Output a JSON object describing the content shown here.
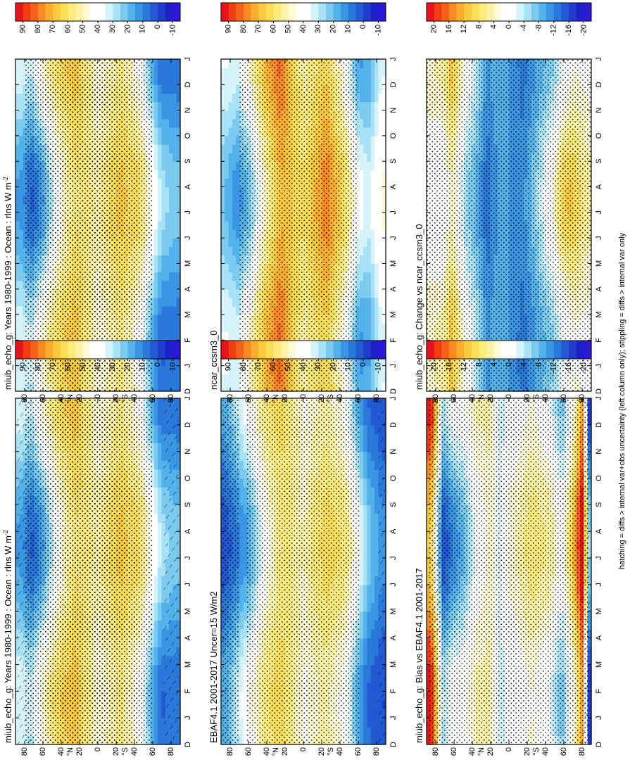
{
  "figure": {
    "footnote": "hatching = diffs > internal var+obs uncertainty (left column only); stippling = diffs > internal var only",
    "orientation": "rotated 90 degrees clockwise (page viewed in landscape)"
  },
  "scales": {
    "absolute": {
      "labels": [
        "90",
        "80",
        "70",
        "60",
        "50",
        "40",
        "30",
        "20",
        "10",
        "0",
        "-10"
      ],
      "colors": [
        "#e8141c",
        "#f23c14",
        "#f7621a",
        "#fb8a22",
        "#fdae2e",
        "#fec93e",
        "#fedd57",
        "#ffeb7c",
        "#fff3a8",
        "#fffbd6",
        "#ffffff",
        "#ffffff",
        "#d6f3fb",
        "#a8e2f7",
        "#7ccaf0",
        "#54b2ea",
        "#3a96e2",
        "#2a78da",
        "#2359d2",
        "#1f3ccc",
        "#1d22c6",
        "#2b18d6"
      ]
    },
    "difference": {
      "labels": [
        "20",
        "16",
        "12",
        "8",
        "4",
        "0",
        "-4",
        "-8",
        "-12",
        "-16",
        "-20"
      ],
      "colors": [
        "#e8141c",
        "#f23c14",
        "#f7621a",
        "#fb8a22",
        "#fdae2e",
        "#fec93e",
        "#fedd57",
        "#ffeb7c",
        "#fff3a8",
        "#fffbd6",
        "#ffffff",
        "#ffffff",
        "#d6f3fb",
        "#a8e2f7",
        "#7ccaf0",
        "#54b2ea",
        "#3a96e2",
        "#2a78da",
        "#2359d2",
        "#1f3ccc",
        "#1d22c6",
        "#2b18d6"
      ]
    }
  },
  "axes": {
    "months": [
      "J",
      "F",
      "M",
      "A",
      "M",
      "J",
      "J",
      "A",
      "S",
      "O",
      "N",
      "D",
      "J"
    ],
    "month_start_label": "D",
    "lat_labels": [
      "80",
      "60",
      "40",
      "20",
      "0",
      "20",
      "40",
      "60",
      "80"
    ],
    "lat_values": [
      80,
      60,
      40,
      20,
      0,
      -20,
      -40,
      -60,
      -80
    ],
    "lat_unit_north": "°N",
    "lat_unit_south": "°S"
  },
  "chart_data": [
    {
      "type": "heatmap",
      "id": "p1",
      "title": "miub_echo_g: Years 1980-1999 : Ocean : rlns W m",
      "title_sup": "-2",
      "scale": "absolute",
      "xlabel": "month",
      "ylabel": "latitude",
      "x": [
        "D",
        "J",
        "F",
        "M",
        "A",
        "M",
        "J",
        "J",
        "A",
        "S",
        "O",
        "N",
        "D",
        "J"
      ],
      "ylim": [
        -90,
        90
      ],
      "lat_profile": [
        [
          -85,
          14
        ],
        [
          -70,
          16
        ],
        [
          -58,
          32
        ],
        [
          -45,
          52
        ],
        [
          -25,
          62
        ],
        [
          -10,
          54
        ],
        [
          0,
          48
        ],
        [
          12,
          58
        ],
        [
          25,
          64
        ],
        [
          42,
          54
        ],
        [
          58,
          34
        ],
        [
          72,
          18
        ],
        [
          85,
          24
        ]
      ],
      "seasonal": [
        [
          -85,
          8
        ],
        [
          -60,
          14
        ],
        [
          -30,
          6
        ],
        [
          0,
          4
        ],
        [
          30,
          -6
        ],
        [
          60,
          -18
        ],
        [
          85,
          -10
        ]
      ],
      "stipple": [
        [
          -60,
          65
        ],
        [
          -45,
          40
        ],
        [
          -20,
          10
        ],
        [
          12,
          58
        ],
        [
          65,
          80
        ]
      ],
      "hatch": [
        [
          -88,
          -72
        ],
        [
          72,
          88
        ]
      ]
    },
    {
      "type": "heatmap",
      "id": "p2",
      "title": "EBAF4.1 2001-2017 Uncer=15 W/m2",
      "title_sup": "",
      "scale": "absolute",
      "xlabel": "month",
      "ylabel": "latitude",
      "x": [
        "D",
        "J",
        "F",
        "M",
        "A",
        "M",
        "J",
        "J",
        "A",
        "S",
        "O",
        "N",
        "D",
        "J"
      ],
      "ylim": [
        -90,
        90
      ],
      "lat_profile": [
        [
          -85,
          6
        ],
        [
          -70,
          14
        ],
        [
          -58,
          30
        ],
        [
          -45,
          50
        ],
        [
          -25,
          58
        ],
        [
          -10,
          52
        ],
        [
          0,
          46
        ],
        [
          12,
          56
        ],
        [
          25,
          60
        ],
        [
          42,
          50
        ],
        [
          58,
          30
        ],
        [
          72,
          20
        ],
        [
          85,
          10
        ]
      ],
      "seasonal": [
        [
          -85,
          6
        ],
        [
          -60,
          12
        ],
        [
          -30,
          6
        ],
        [
          0,
          3
        ],
        [
          30,
          -5
        ],
        [
          60,
          -14
        ],
        [
          85,
          -8
        ]
      ],
      "stipple": [
        [
          -62,
          62
        ],
        [
          70,
          88
        ]
      ],
      "hatch": [
        [
          -90,
          -82
        ],
        [
          80,
          90
        ]
      ]
    },
    {
      "type": "heatmap",
      "id": "p3",
      "title": "miub_echo_g: Bias vs EBAF4.1 2001-2017",
      "title_sup": "",
      "scale": "difference",
      "xlabel": "month",
      "ylabel": "latitude",
      "x": [
        "D",
        "J",
        "F",
        "M",
        "A",
        "M",
        "J",
        "J",
        "A",
        "S",
        "O",
        "N",
        "D",
        "J"
      ],
      "ylim": [
        -90,
        90
      ],
      "lat_profile": [
        [
          -88,
          -12
        ],
        [
          -80,
          18
        ],
        [
          -70,
          6
        ],
        [
          -58,
          -4
        ],
        [
          -45,
          2
        ],
        [
          -25,
          5
        ],
        [
          -10,
          2
        ],
        [
          0,
          1
        ],
        [
          10,
          -3
        ],
        [
          20,
          4
        ],
        [
          35,
          2
        ],
        [
          50,
          -4
        ],
        [
          62,
          -6
        ],
        [
          72,
          -10
        ],
        [
          85,
          16
        ]
      ],
      "seasonal": [
        [
          -85,
          6
        ],
        [
          -60,
          4
        ],
        [
          0,
          2
        ],
        [
          60,
          -6
        ],
        [
          85,
          -6
        ]
      ],
      "stipple": [
        [
          -88,
          88
        ]
      ],
      "hatch": [
        [
          -88,
          -80
        ],
        [
          74,
          88
        ]
      ]
    },
    {
      "type": "heatmap",
      "id": "p4",
      "title": "miub_echo_g: Years 1980-1999 : Ocean : rlns W m",
      "title_sup": "-2",
      "scale": "absolute",
      "xlabel": "month",
      "ylabel": "latitude",
      "x": [
        "D",
        "J",
        "F",
        "M",
        "A",
        "M",
        "J",
        "J",
        "A",
        "S",
        "O",
        "N",
        "D",
        "J"
      ],
      "ylim": [
        -90,
        90
      ],
      "lat_profile": [
        [
          -85,
          14
        ],
        [
          -70,
          16
        ],
        [
          -58,
          32
        ],
        [
          -45,
          52
        ],
        [
          -25,
          62
        ],
        [
          -10,
          54
        ],
        [
          0,
          48
        ],
        [
          12,
          58
        ],
        [
          25,
          64
        ],
        [
          42,
          54
        ],
        [
          58,
          34
        ],
        [
          72,
          18
        ],
        [
          85,
          24
        ]
      ],
      "seasonal": [
        [
          -85,
          8
        ],
        [
          -60,
          14
        ],
        [
          -30,
          6
        ],
        [
          0,
          4
        ],
        [
          30,
          -6
        ],
        [
          60,
          -18
        ],
        [
          85,
          -10
        ]
      ],
      "stipple": [
        [
          -60,
          65
        ],
        [
          -45,
          40
        ],
        [
          -20,
          10
        ],
        [
          12,
          58
        ],
        [
          65,
          80
        ]
      ],
      "hatch": []
    },
    {
      "type": "heatmap",
      "id": "p5",
      "title": "ncar_ccsm3_0",
      "title_sup": "",
      "scale": "absolute",
      "xlabel": "month",
      "ylabel": "latitude",
      "x": [
        "D",
        "J",
        "F",
        "M",
        "A",
        "M",
        "J",
        "J",
        "A",
        "S",
        "O",
        "N",
        "D",
        "J"
      ],
      "ylim": [
        -90,
        90
      ],
      "lat_profile": [
        [
          -85,
          40
        ],
        [
          -72,
          24
        ],
        [
          -60,
          26
        ],
        [
          -45,
          52
        ],
        [
          -25,
          72
        ],
        [
          -10,
          62
        ],
        [
          0,
          56
        ],
        [
          12,
          66
        ],
        [
          25,
          76
        ],
        [
          42,
          60
        ],
        [
          58,
          36
        ],
        [
          72,
          22
        ],
        [
          85,
          28
        ]
      ],
      "seasonal": [
        [
          -85,
          6
        ],
        [
          -60,
          12
        ],
        [
          -30,
          8
        ],
        [
          0,
          4
        ],
        [
          30,
          -8
        ],
        [
          60,
          -14
        ],
        [
          85,
          -8
        ]
      ],
      "stipple": [
        [
          -60,
          70
        ]
      ],
      "hatch": []
    },
    {
      "type": "heatmap",
      "id": "p6",
      "title": "miub_echo_g: Change vs ncar_ccsm3_0",
      "title_sup": "",
      "scale": "difference",
      "xlabel": "month",
      "ylabel": "latitude",
      "x": [
        "D",
        "J",
        "F",
        "M",
        "A",
        "M",
        "J",
        "J",
        "A",
        "S",
        "O",
        "N",
        "D",
        "J"
      ],
      "ylim": [
        -90,
        90
      ],
      "lat_profile": [
        [
          -85,
          3
        ],
        [
          -70,
          6
        ],
        [
          -60,
          4
        ],
        [
          -48,
          -2
        ],
        [
          -30,
          -8
        ],
        [
          -15,
          -12
        ],
        [
          0,
          -10
        ],
        [
          12,
          -9
        ],
        [
          24,
          -12
        ],
        [
          36,
          -6
        ],
        [
          48,
          -2
        ],
        [
          62,
          8
        ],
        [
          72,
          2
        ],
        [
          85,
          2
        ]
      ],
      "seasonal": [
        [
          -85,
          2
        ],
        [
          -60,
          6
        ],
        [
          -30,
          2
        ],
        [
          0,
          0
        ],
        [
          30,
          -2
        ],
        [
          60,
          -4
        ],
        [
          85,
          -2
        ]
      ],
      "stipple": [
        [
          -90,
          90
        ]
      ],
      "hatch": []
    }
  ]
}
